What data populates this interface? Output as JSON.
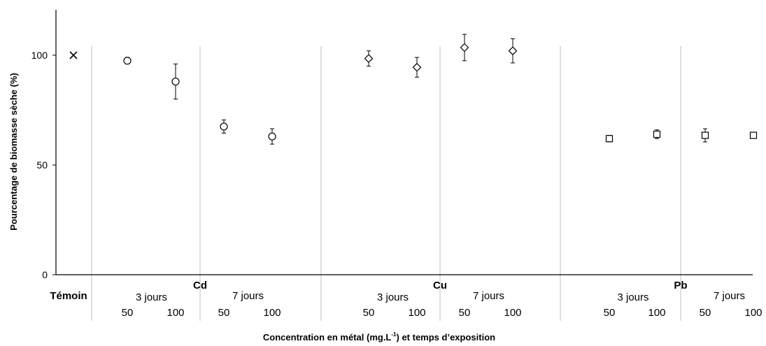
{
  "chart_data": {
    "type": "scatter",
    "xlabel_main": "Concentration en métal (mg.L",
    "xlabel_sup": "-1",
    "xlabel_tail": ") et temps d’exposition",
    "ylabel": "Pourcentage de biomasse sèche (%)",
    "ylim": [
      0,
      120
    ],
    "yticks": [
      0,
      50,
      100
    ],
    "grid": false,
    "control": {
      "label": "Témoin",
      "value": 100,
      "marker": "x"
    },
    "groups": [
      {
        "name": "Cd",
        "marker": "circle",
        "exposures": [
          {
            "label": "3 jours",
            "points": [
              {
                "concentration": "50",
                "value": 97.5,
                "error": 1.5
              },
              {
                "concentration": "100",
                "value": 88,
                "error": 8
              }
            ]
          },
          {
            "label": "7 jours",
            "points": [
              {
                "concentration": "50",
                "value": 67.5,
                "error": 3
              },
              {
                "concentration": "100",
                "value": 63,
                "error": 3.5
              }
            ]
          }
        ]
      },
      {
        "name": "Cu",
        "marker": "diamond",
        "exposures": [
          {
            "label": "3 jours",
            "points": [
              {
                "concentration": "50",
                "value": 98.5,
                "error": 3.5
              },
              {
                "concentration": "100",
                "value": 94.5,
                "error": 4.5
              }
            ]
          },
          {
            "label": "7 jours",
            "points": [
              {
                "concentration": "50",
                "value": 103.5,
                "error": 6
              },
              {
                "concentration": "100",
                "value": 102,
                "error": 5.5
              }
            ]
          }
        ]
      },
      {
        "name": "Pb",
        "marker": "square",
        "exposures": [
          {
            "label": "3 jours",
            "points": [
              {
                "concentration": "50",
                "value": 62,
                "error": 1.5
              },
              {
                "concentration": "100",
                "value": 64,
                "error": 2
              }
            ]
          },
          {
            "label": "7 jours",
            "points": [
              {
                "concentration": "50",
                "value": 63.5,
                "error": 3
              },
              {
                "concentration": "100",
                "value": 63.5,
                "error": 0
              }
            ]
          }
        ]
      }
    ]
  }
}
